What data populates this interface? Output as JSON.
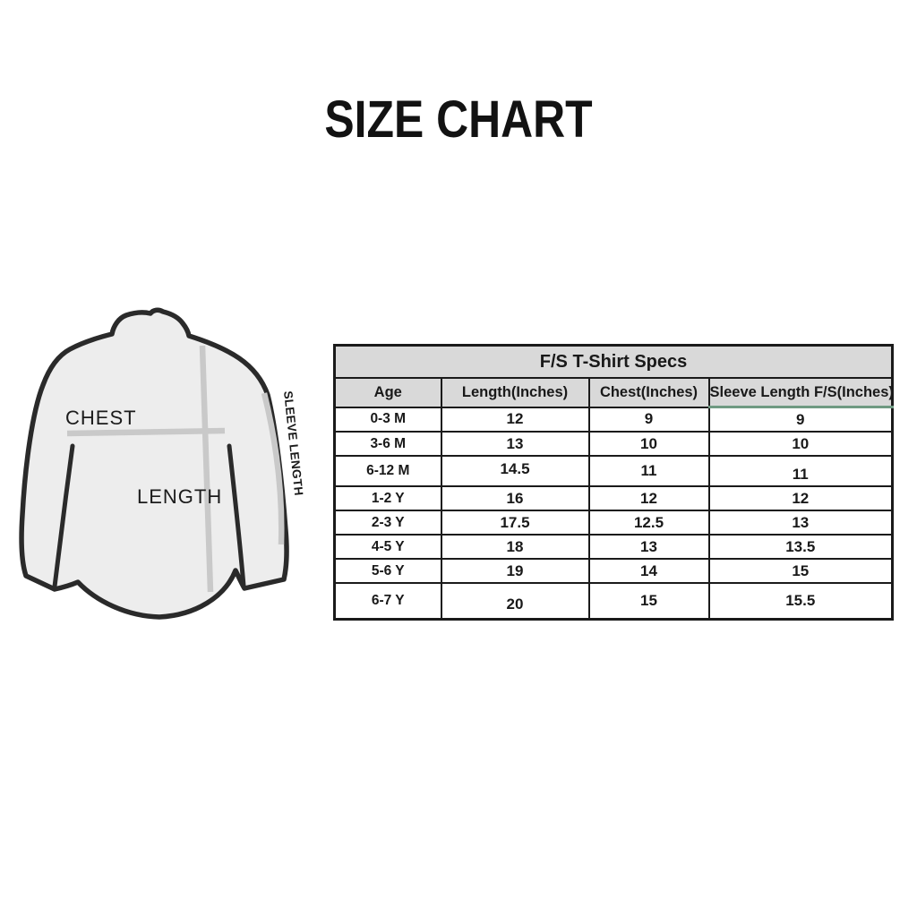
{
  "title": "SIZE CHART",
  "diagram": {
    "chest_label": "CHEST",
    "length_label": "LENGTH",
    "sleeve_label": "SLEEVE LENGTH",
    "shirt_fill": "#ededed",
    "outline_color": "#2a2a2a",
    "guide_line_color": "#c9c9c9"
  },
  "table": {
    "title": "F/S T-Shirt Specs",
    "columns": [
      "Age",
      "Length(Inches)",
      "Chest(Inches)",
      "Sleeve Length F/S(Inches)"
    ],
    "rows": [
      [
        "0-3 M",
        "12",
        "9",
        "9"
      ],
      [
        "3-6 M",
        "13",
        "10",
        "10"
      ],
      [
        "6-12 M",
        "14.5",
        "11",
        "11"
      ],
      [
        "1-2 Y",
        "16",
        "12",
        "12"
      ],
      [
        "2-3 Y",
        "17.5",
        "12.5",
        "13"
      ],
      [
        "4-5 Y",
        "18",
        "13",
        "13.5"
      ],
      [
        "5-6 Y",
        "19",
        "14",
        "15"
      ],
      [
        "6-7 Y",
        "20",
        "15",
        "15.5"
      ]
    ],
    "header_bg": "#d9d9d9",
    "border_color": "#1a1a1a",
    "accent_underline_color": "#6f9a82"
  },
  "chart_data": {
    "type": "table",
    "title": "F/S T-Shirt Specs",
    "columns": [
      "Age",
      "Length(Inches)",
      "Chest(Inches)",
      "Sleeve Length F/S(Inches)"
    ],
    "rows": [
      {
        "age": "0-3 M",
        "length_in": 12,
        "chest_in": 9,
        "sleeve_length_fs_in": 9
      },
      {
        "age": "3-6 M",
        "length_in": 13,
        "chest_in": 10,
        "sleeve_length_fs_in": 10
      },
      {
        "age": "6-12 M",
        "length_in": 14.5,
        "chest_in": 11,
        "sleeve_length_fs_in": 11
      },
      {
        "age": "1-2 Y",
        "length_in": 16,
        "chest_in": 12,
        "sleeve_length_fs_in": 12
      },
      {
        "age": "2-3 Y",
        "length_in": 17.5,
        "chest_in": 12.5,
        "sleeve_length_fs_in": 13
      },
      {
        "age": "4-5 Y",
        "length_in": 18,
        "chest_in": 13,
        "sleeve_length_fs_in": 13.5
      },
      {
        "age": "5-6 Y",
        "length_in": 19,
        "chest_in": 14,
        "sleeve_length_fs_in": 15
      },
      {
        "age": "6-7 Y",
        "length_in": 20,
        "chest_in": 15,
        "sleeve_length_fs_in": 15.5
      }
    ]
  }
}
